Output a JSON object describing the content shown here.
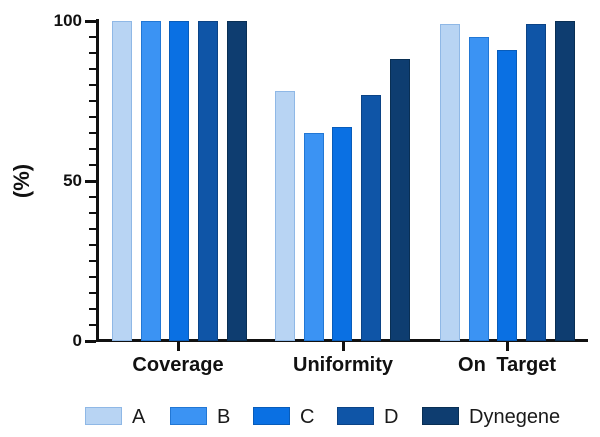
{
  "chart_data": {
    "type": "bar",
    "title": "",
    "categories": [
      "Coverage",
      "Uniformity",
      "On Target"
    ],
    "series": [
      {
        "name": "A",
        "color": "#b8d4f3",
        "border": "#8fb8e6",
        "values": [
          100,
          78,
          99
        ]
      },
      {
        "name": "B",
        "color": "#3b93f3",
        "border": "#2277d4",
        "values": [
          100,
          65,
          95
        ]
      },
      {
        "name": "C",
        "color": "#0a70e3",
        "border": "#085cba",
        "values": [
          100,
          67,
          91
        ]
      },
      {
        "name": "D",
        "color": "#0f55a7",
        "border": "#0b4386",
        "values": [
          100,
          77,
          99
        ]
      },
      {
        "name": "Dynegene",
        "color": "#0e3d70",
        "border": "#092f54",
        "values": [
          100,
          88,
          100
        ]
      }
    ],
    "xlabel": "",
    "ylabel": "(%)",
    "ylim": [
      0,
      100
    ],
    "yticks": [
      0,
      50,
      100
    ],
    "ytick_labels": [
      "0",
      "50",
      "100"
    ],
    "minor_tick_step": 5,
    "grid": false,
    "legend_position": "bottom",
    "axis_color": "#111111",
    "background_color": "#ffffff"
  }
}
